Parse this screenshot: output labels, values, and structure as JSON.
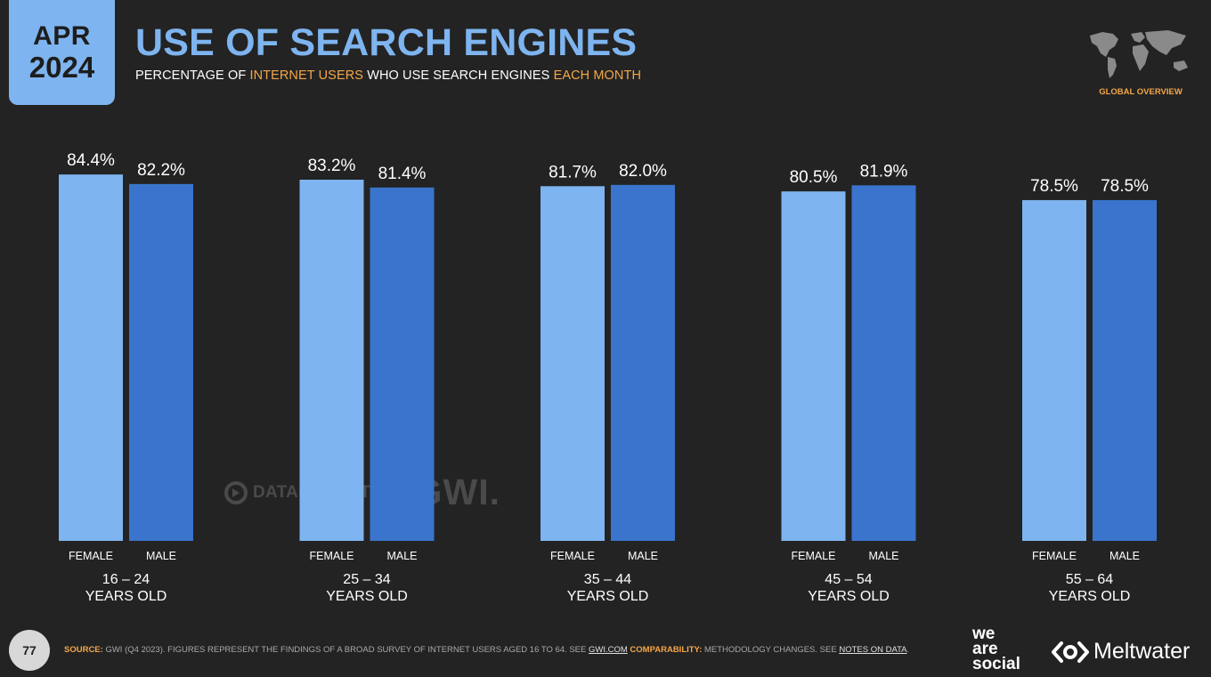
{
  "header": {
    "badge_month": "APR",
    "badge_year": "2024",
    "title": "USE OF SEARCH ENGINES",
    "subtitle": {
      "part1": "PERCENTAGE OF ",
      "highlight1": "INTERNET USERS",
      "part2": " WHO USE SEARCH ENGINES ",
      "highlight2": "EACH MONTH"
    },
    "region_label": "GLOBAL OVERVIEW"
  },
  "colors": {
    "accent": "#7eb4ef",
    "female": "#7eb4ef",
    "male": "#3a74cc",
    "highlight": "#f5a748",
    "background": "#232323"
  },
  "chart_data": {
    "type": "bar",
    "categories": [
      "16 – 24|YEARS OLD",
      "25 – 34|YEARS OLD",
      "35 – 44|YEARS OLD",
      "45 – 54|YEARS OLD",
      "55 – 64|YEARS OLD"
    ],
    "series": [
      {
        "name": "FEMALE",
        "values": [
          84.4,
          83.2,
          81.7,
          80.5,
          78.5
        ],
        "labels": [
          "84.4%",
          "83.2%",
          "81.7%",
          "80.5%",
          "78.5%"
        ]
      },
      {
        "name": "MALE",
        "values": [
          82.2,
          81.4,
          82.0,
          81.9,
          78.5
        ],
        "labels": [
          "82.2%",
          "81.4%",
          "82.0%",
          "81.9%",
          "78.5%"
        ]
      }
    ],
    "ylim": [
      0,
      100
    ],
    "grid": false,
    "legend": "none"
  },
  "watermark": {
    "datareportal": "DATAREPORTAL",
    "gwi": "GWI."
  },
  "footer": {
    "page_number": "77",
    "source_label": "SOURCE:",
    "source_text": " GWI (Q4 2023). FIGURES REPRESENT THE FINDINGS OF A BROAD SURVEY OF INTERNET USERS AGED 16 TO 64. SEE ",
    "source_link": "GWI.COM",
    "comparability_label": " COMPARABILITY:",
    "comparability_text": " METHODOLOGY CHANGES. SEE ",
    "notes_link": "NOTES ON DATA",
    "end": "."
  },
  "logos": {
    "we": "we",
    "are": "are",
    "social": "social",
    "meltwater": "Meltwater"
  }
}
